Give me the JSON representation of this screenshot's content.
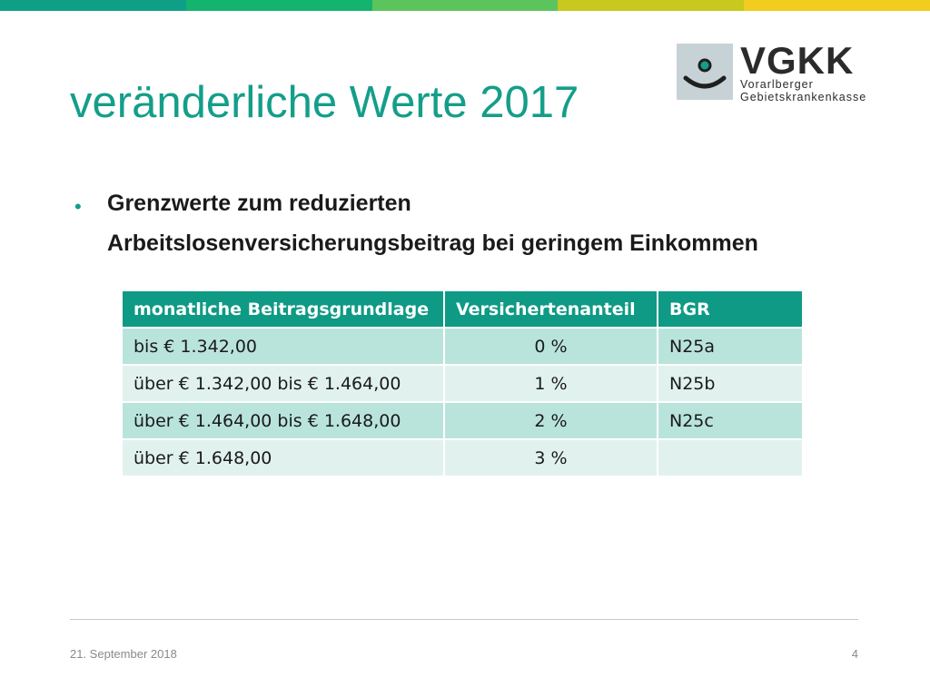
{
  "colors": {
    "accent": "#149e8a",
    "header_bg": "#0e9a85",
    "row_dark": "#b9e4dc",
    "row_light": "#e1f2ee",
    "topbar": [
      "#0f9f86",
      "#14b36e",
      "#5cc45c",
      "#c8c81e",
      "#f2cc1e"
    ]
  },
  "logo": {
    "name": "VGKK",
    "sub_line1": "Vorarlberger",
    "sub_line2": "Gebietskrankenkasse"
  },
  "title": "veränderliche Werte 2017",
  "bullet": {
    "symbol": "•",
    "line1": "Grenzwerte zum reduzierten",
    "line2": "Arbeitslosenversicherungsbeitrag bei geringem Einkommen"
  },
  "table": {
    "headers": [
      "monatliche Beitragsgrundlage",
      "Versichertenanteil",
      "BGR"
    ],
    "rows": [
      [
        "bis € 1.342,00",
        "0 %",
        "N25a"
      ],
      [
        "über € 1.342,00 bis € 1.464,00",
        "1 %",
        "N25b"
      ],
      [
        "über € 1.464,00 bis € 1.648,00",
        "2 %",
        "N25c"
      ],
      [
        "über € 1.648,00",
        "3 %",
        ""
      ]
    ]
  },
  "footer": {
    "date": "21. September 2018",
    "page": "4"
  }
}
